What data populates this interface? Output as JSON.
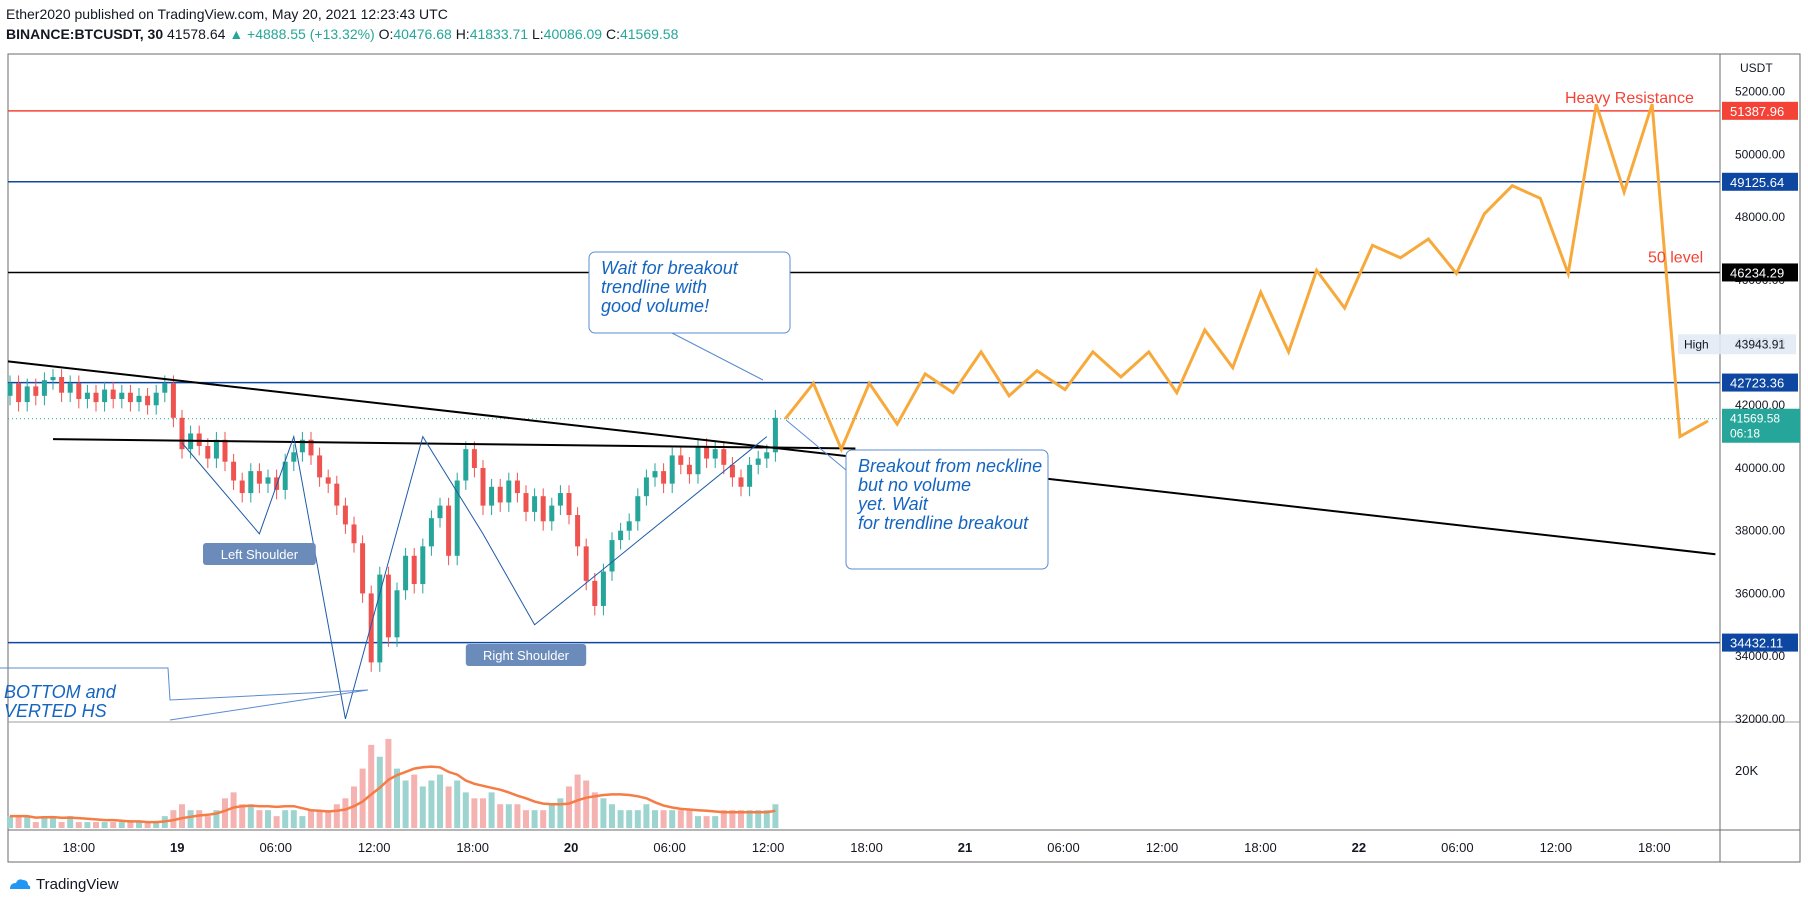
{
  "header": {
    "publisher_line": "Ether2020 published on TradingView.com, May 20, 2021 12:23:43 UTC",
    "symbol": "BINANCE:BTCUSDT, 30",
    "last": "41578.64",
    "change": "▲ +4888.55 (+13.32%)",
    "o_label": "O:",
    "o": "40476.68",
    "h_label": "H:",
    "h": "41833.71",
    "l_label": "L:",
    "l": "40086.09",
    "c_label": "C:",
    "c": "41569.58"
  },
  "footer": {
    "brand": "TradingView"
  },
  "colors": {
    "up": "#26a69a",
    "down": "#ef5350",
    "blue_line": "#0d47a1",
    "red_line": "#f44336",
    "black_line": "#000000",
    "projection": "#f7a93b",
    "annotation": "#1565c0",
    "label_bg": "#6b8cba",
    "volume_ma": "#f57c44"
  },
  "chart_data": {
    "type": "candlestick",
    "currency": "USDT",
    "y_axis_ticks": [
      32000,
      34000,
      36000,
      38000,
      40000,
      42000,
      44000,
      46000,
      48000,
      50000,
      52000
    ],
    "y_range": [
      31900,
      53200
    ],
    "x_tick_labels": [
      "18:00",
      "19",
      "06:00",
      "12:00",
      "18:00",
      "20",
      "06:00",
      "12:00",
      "18:00",
      "21",
      "06:00",
      "12:00",
      "18:00",
      "22",
      "06:00",
      "12:00",
      "18:00"
    ],
    "volume_axis_label": "20K",
    "candles_open_close_est": [
      [
        42300,
        42700
      ],
      [
        42700,
        42100
      ],
      [
        42100,
        42600
      ],
      [
        42600,
        42300
      ],
      [
        42300,
        42800
      ],
      [
        42800,
        42900
      ],
      [
        42900,
        42400
      ],
      [
        42400,
        42700
      ],
      [
        42700,
        42200
      ],
      [
        42200,
        42400
      ],
      [
        42400,
        42100
      ],
      [
        42100,
        42500
      ],
      [
        42500,
        42200
      ],
      [
        42200,
        42400
      ],
      [
        42400,
        42100
      ],
      [
        42100,
        42300
      ],
      [
        42300,
        42000
      ],
      [
        42000,
        42400
      ],
      [
        42400,
        42700
      ],
      [
        42700,
        41600
      ],
      [
        41600,
        40600
      ],
      [
        40600,
        41100
      ],
      [
        41100,
        40700
      ],
      [
        40700,
        40300
      ],
      [
        40300,
        40900
      ],
      [
        40900,
        40200
      ],
      [
        40200,
        39600
      ],
      [
        39600,
        39200
      ],
      [
        39200,
        39900
      ],
      [
        39900,
        39500
      ],
      [
        39500,
        39700
      ],
      [
        39700,
        39300
      ],
      [
        39300,
        40200
      ],
      [
        40200,
        40500
      ],
      [
        40500,
        40900
      ],
      [
        40900,
        40400
      ],
      [
        40400,
        39700
      ],
      [
        39700,
        39500
      ],
      [
        39500,
        38800
      ],
      [
        38800,
        38200
      ],
      [
        38200,
        37600
      ],
      [
        37600,
        36000
      ],
      [
        36000,
        33800
      ],
      [
        33800,
        36600
      ],
      [
        36600,
        34600
      ],
      [
        34600,
        36100
      ],
      [
        36100,
        37200
      ],
      [
        37200,
        36300
      ],
      [
        36300,
        37500
      ],
      [
        37500,
        38400
      ],
      [
        38400,
        38800
      ],
      [
        38800,
        37200
      ],
      [
        37200,
        39600
      ],
      [
        39600,
        40600
      ],
      [
        40600,
        40000
      ],
      [
        40000,
        38800
      ],
      [
        38800,
        39400
      ],
      [
        39400,
        38900
      ],
      [
        38900,
        39600
      ],
      [
        39600,
        39200
      ],
      [
        39200,
        38600
      ],
      [
        38600,
        39100
      ],
      [
        39100,
        38300
      ],
      [
        38300,
        38800
      ],
      [
        38800,
        39200
      ],
      [
        39200,
        38500
      ],
      [
        38500,
        37500
      ],
      [
        37500,
        36400
      ],
      [
        36400,
        35600
      ],
      [
        35600,
        36700
      ],
      [
        36700,
        37700
      ],
      [
        37700,
        38000
      ],
      [
        38000,
        38300
      ],
      [
        38300,
        39100
      ],
      [
        39100,
        39700
      ],
      [
        39700,
        39900
      ],
      [
        39900,
        39500
      ],
      [
        39500,
        40400
      ],
      [
        40400,
        40100
      ],
      [
        40100,
        39800
      ],
      [
        39800,
        40700
      ],
      [
        40700,
        40300
      ],
      [
        40300,
        40600
      ],
      [
        40600,
        40100
      ],
      [
        40100,
        39700
      ],
      [
        39700,
        39400
      ],
      [
        39400,
        40100
      ],
      [
        40100,
        40300
      ],
      [
        40300,
        40500
      ],
      [
        40500,
        41600
      ]
    ],
    "volume_est": [
      2,
      2,
      2,
      1,
      2,
      2,
      1,
      2,
      1,
      1,
      1,
      1,
      1,
      1,
      1,
      1,
      1,
      1,
      2,
      3,
      4,
      3,
      3,
      2,
      3,
      5,
      6,
      4,
      4,
      3,
      3,
      2,
      3,
      3,
      2,
      3,
      3,
      3,
      4,
      5,
      7,
      10,
      14,
      12,
      15,
      10,
      8,
      9,
      7,
      8,
      9,
      7,
      8,
      6,
      5,
      5,
      6,
      4,
      4,
      4,
      3,
      3,
      3,
      4,
      5,
      7,
      9,
      8,
      6,
      5,
      4,
      3,
      3,
      3,
      4,
      3,
      3,
      3,
      3,
      3,
      2,
      2,
      2,
      3,
      3,
      3,
      3,
      3,
      3,
      4
    ],
    "horizontal_levels": [
      {
        "value": 51387.96,
        "label": "51387.96",
        "color": "red"
      },
      {
        "value": 49125.64,
        "label": "49125.64",
        "color": "blue"
      },
      {
        "value": 46234.29,
        "label": "46234.29",
        "color": "black"
      },
      {
        "value": 42723.36,
        "label": "42723.36",
        "color": "blue"
      },
      {
        "value": 34432.11,
        "label": "34432.11",
        "color": "blue"
      }
    ],
    "current_price": {
      "value": 41569.58,
      "label": "41569.58",
      "countdown": "06:18"
    },
    "high_marker": {
      "value": 43943.91,
      "label": "43943.91",
      "text": "High"
    },
    "trendline": {
      "from_price": 43400,
      "to_price": 37250
    },
    "neckline": {
      "from_price": 40920,
      "to_price": 40620
    },
    "projection_prices": [
      41570,
      42700,
      40600,
      42700,
      41400,
      43000,
      42400,
      43700,
      42300,
      43100,
      42500,
      43700,
      42900,
      43700,
      42400,
      44400,
      43200,
      45600,
      43700,
      46300,
      45100,
      47100,
      46700,
      47300,
      46200,
      48100,
      49000,
      48600,
      46200,
      51600,
      48800,
      51600,
      41000,
      41500
    ],
    "annotations": {
      "wait_trendline": "Wait for breakout trendline with good volume!",
      "breakout_neckline": "Breakout from neckline but no volume yet. Wait for trendline breakout",
      "bottom_note": "BOTTOM and VERTED HS",
      "left_shoulder": "Left Shoulder",
      "right_shoulder": "Right Shoulder",
      "heavy_resistance": "Heavy Resistance",
      "fifty_level": "50 level"
    }
  }
}
